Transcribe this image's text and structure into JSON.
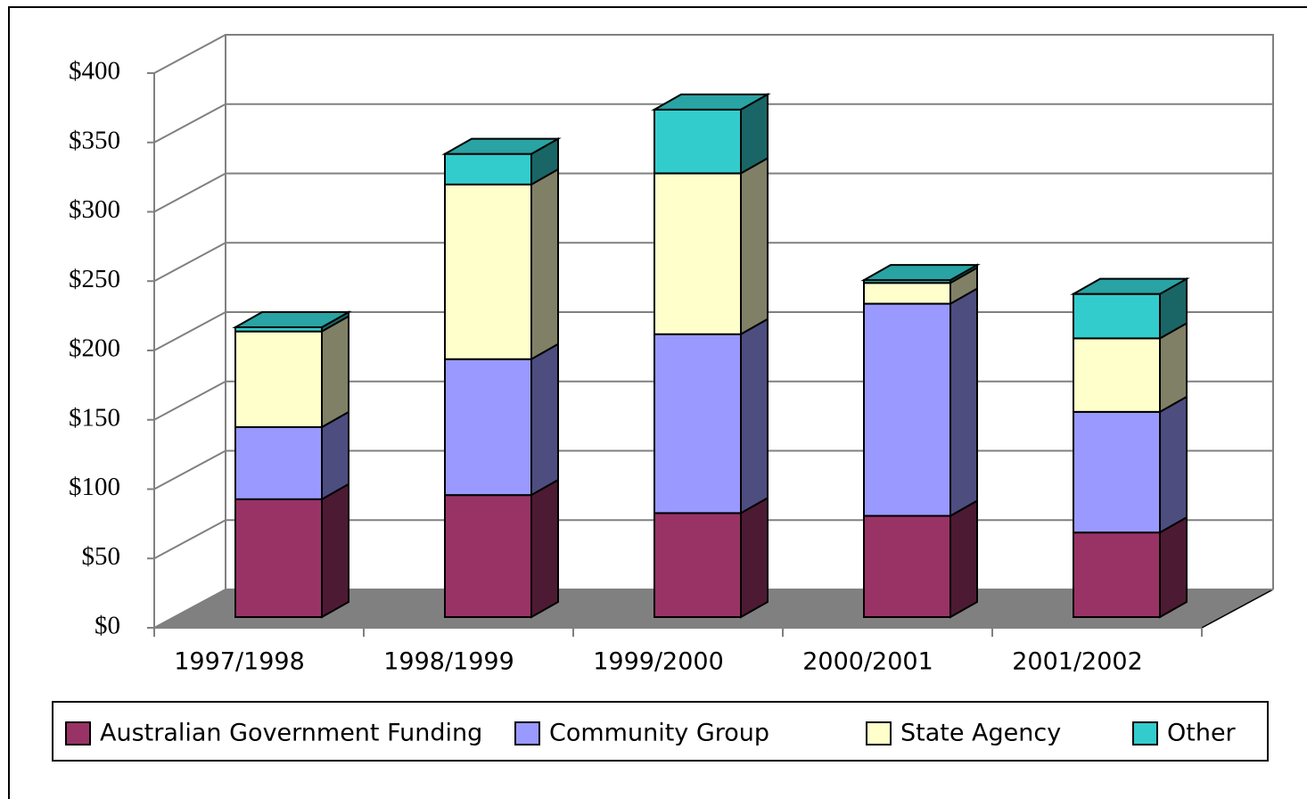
{
  "chart_data": {
    "type": "bar3d_stacked",
    "categories": [
      "1997/1998",
      "1998/1999",
      "1999/2000",
      "2000/2001",
      "2001/2002"
    ],
    "series": [
      {
        "name": "Australian Government Funding",
        "color": "#993366",
        "values": [
          85,
          88,
          75,
          73,
          61
        ]
      },
      {
        "name": "Community Group",
        "color": "#9999ff",
        "values": [
          52,
          98,
          129,
          153,
          87
        ]
      },
      {
        "name": "State Agency",
        "color": "#ffffcc",
        "values": [
          69,
          126,
          116,
          15,
          53
        ]
      },
      {
        "name": "Other",
        "color": "#33cccc",
        "values": [
          3,
          22,
          46,
          2,
          32
        ]
      }
    ],
    "ylim": [
      0,
      400
    ],
    "yticks": [
      {
        "value": 0,
        "label": "$0"
      },
      {
        "value": 50,
        "label": "$50"
      },
      {
        "value": 100,
        "label": "$100"
      },
      {
        "value": 150,
        "label": "$150"
      },
      {
        "value": 200,
        "label": "$200"
      },
      {
        "value": 250,
        "label": "$250"
      },
      {
        "value": 300,
        "label": "$300"
      },
      {
        "value": 350,
        "label": "$350"
      },
      {
        "value": 400,
        "label": "$400"
      }
    ],
    "grid": true
  }
}
